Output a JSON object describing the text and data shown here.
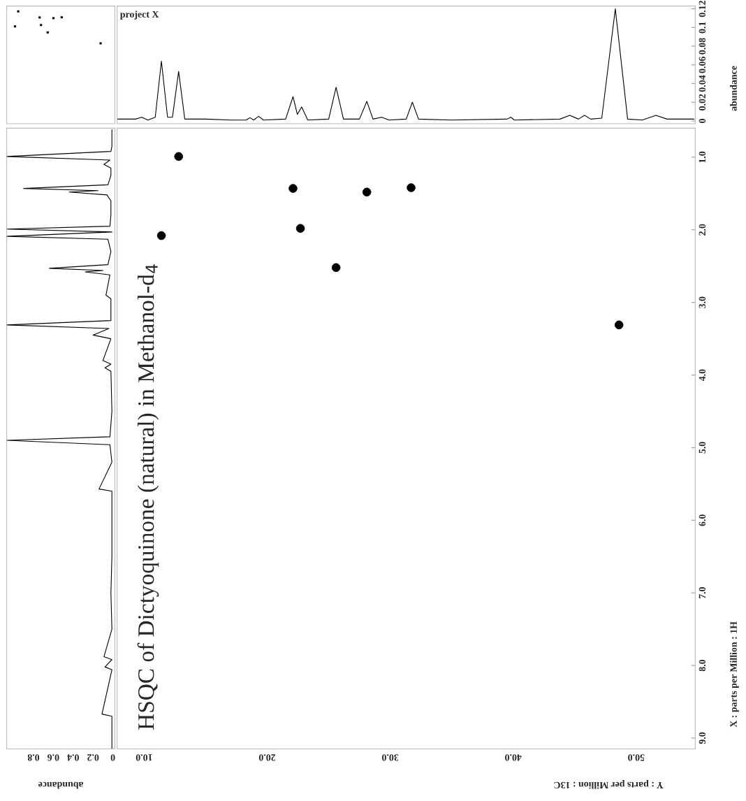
{
  "chart_data": [
    {
      "type": "line",
      "color": "#000000",
      "annotations": [
        "project X"
      ],
      "ylabel": "abundance",
      "tick_labels": "y",
      "grid": false,
      "legend": false,
      "xlim": [
        7.8,
        54.8
      ],
      "ylim": [
        -0.003,
        0.123
      ],
      "yticks": [
        0,
        0.02,
        0.04,
        0.06,
        0.08,
        0.1,
        0.12
      ],
      "x": [
        7.8,
        9.3,
        9.8,
        10.3,
        10.9,
        11.4,
        11.9,
        12.3,
        12.8,
        13.3,
        15,
        17,
        18.3,
        18.6,
        18.9,
        19.3,
        19.7,
        21.5,
        22.1,
        22.45,
        22.8,
        23.3,
        25.0,
        25.6,
        26.2,
        27.5,
        28.1,
        28.6,
        29.3,
        29.9,
        31.3,
        31.8,
        32.3,
        35,
        39.5,
        39.8,
        40.1,
        43.8,
        44.6,
        45.3,
        45.8,
        46.3,
        47.2,
        48.3,
        49.3,
        50.5,
        51.6,
        52.5,
        54.7
      ],
      "values": [
        0.002,
        0.002,
        0.004,
        0.001,
        0.004,
        0.064,
        0.004,
        0.004,
        0.053,
        0.002,
        0.002,
        0.001,
        0.001,
        0.0035,
        0.001,
        0.005,
        0.001,
        0.002,
        0.026,
        0.007,
        0.015,
        0.001,
        0.002,
        0.036,
        0.002,
        0.002,
        0.021,
        0.002,
        0.004,
        0.001,
        0.002,
        0.02,
        0.002,
        0.001,
        0.002,
        0.004,
        0.001,
        0.002,
        0.006,
        0.002,
        0.006,
        0.002,
        0.003,
        0.12,
        0.002,
        0.001,
        0.006,
        0.002,
        0.002
      ]
    },
    {
      "type": "line",
      "orientation": "horizontal",
      "color": "#000000",
      "xlabel": "abundance",
      "tick_labels": "x",
      "grid": false,
      "legend": false,
      "xlim": [
        1.07,
        -0.02
      ],
      "xticks": [
        0,
        0.2,
        0.4,
        0.6,
        0.8
      ],
      "ylim": [
        9.15,
        0.6
      ],
      "x": [
        0.62,
        0.85,
        0.92,
        0.99,
        1.04,
        1.1,
        1.15,
        1.25,
        1.38,
        1.43,
        1.46,
        1.48,
        1.52,
        1.6,
        1.8,
        1.95,
        1.99,
        2.03,
        2.09,
        2.13,
        2.3,
        2.48,
        2.53,
        2.56,
        2.58,
        2.62,
        2.9,
        2.95,
        3.25,
        3.31,
        3.36,
        3.45,
        3.5,
        3.8,
        3.85,
        3.9,
        3.95,
        4.5,
        4.85,
        4.9,
        4.96,
        5.2,
        5.57,
        5.6,
        6.5,
        7.0,
        7.5,
        7.88,
        7.92,
        8.02,
        8.06,
        8.67,
        8.7,
        9.15
      ],
      "values": [
        0.01,
        0.01,
        0.02,
        1.07,
        0.03,
        0.09,
        0.02,
        0.02,
        0.05,
        0.9,
        0.15,
        0.44,
        0.06,
        0.02,
        0.02,
        0.03,
        1.07,
        0.01,
        1.07,
        0.05,
        0.02,
        0.05,
        0.64,
        0.1,
        0.28,
        0.03,
        0.07,
        0.02,
        0.02,
        1.07,
        0.04,
        0.2,
        0.02,
        0.1,
        0.02,
        0.08,
        0.02,
        0.01,
        0.03,
        1.07,
        0.03,
        0.01,
        0.14,
        0.01,
        0.01,
        0.02,
        0.01,
        0.09,
        0.01,
        0.08,
        0.01,
        0.11,
        0.01,
        0.01
      ]
    },
    {
      "type": "scatter",
      "color": "#000000",
      "marker": "circle",
      "title": "HSQC of Dictyoquinone (natural) in Methanol-d$_{4}$",
      "xlabel": "Y : parts per Million : 13C",
      "ylabel": "X : parts per Million : 1H",
      "grid": false,
      "legend": false,
      "xlim": [
        7.8,
        54.8
      ],
      "ylim": [
        9.15,
        0.6
      ],
      "xticks": [
        {
          "value": 10,
          "label": "10.0"
        },
        {
          "value": 20,
          "label": "20.0"
        },
        {
          "value": 30,
          "label": "30.0"
        },
        {
          "value": 40,
          "label": "40.0"
        },
        {
          "value": 50,
          "label": "50.0"
        }
      ],
      "yticks": [
        {
          "value": 1,
          "label": "1.0"
        },
        {
          "value": 2,
          "label": "2.0"
        },
        {
          "value": 3,
          "label": "3.0"
        },
        {
          "value": 4,
          "label": "4.0"
        },
        {
          "value": 5,
          "label": "5.0"
        },
        {
          "value": 6,
          "label": "6.0"
        },
        {
          "value": 7,
          "label": "7.0"
        },
        {
          "value": 8,
          "label": "8.0"
        },
        {
          "value": 9,
          "label": "9.0"
        }
      ],
      "x": [
        12.8,
        11.4,
        22.1,
        22.7,
        28.1,
        31.7,
        25.6,
        48.6
      ],
      "values": [
        0.99,
        2.08,
        1.43,
        1.98,
        1.48,
        1.42,
        2.52,
        3.31
      ]
    }
  ]
}
